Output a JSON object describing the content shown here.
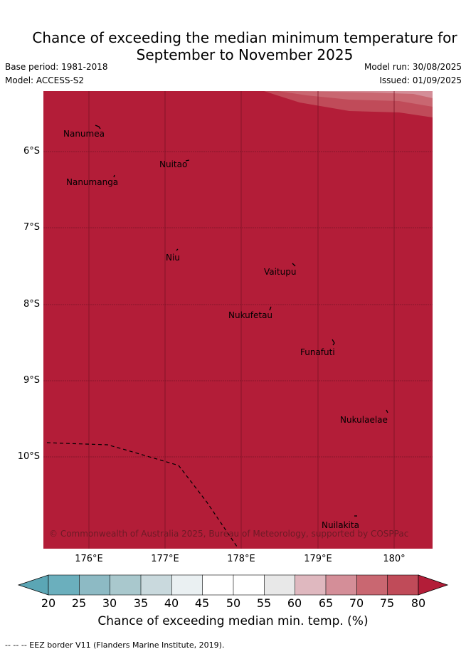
{
  "title": {
    "line1": "Chance of exceeding the median minimum temperature for",
    "line2": "September to November 2025"
  },
  "meta": {
    "base_period": "Base period: 1981-2018",
    "model": "Model: ACCESS-S2",
    "model_run": "Model run: 30/08/2025",
    "issued": "Issued: 01/09/2025"
  },
  "map": {
    "fill_color": "#b31d38",
    "y_ticks": [
      "6°S",
      "7°S",
      "8°S",
      "9°S",
      "10°S"
    ],
    "x_ticks": [
      "176°E",
      "177°E",
      "178°E",
      "179°E",
      "180°"
    ],
    "islands": [
      "Nanumea",
      "Nuitao",
      "Nanumanga",
      "Niu",
      "Vaitupu",
      "Nukufetau",
      "Funafuti",
      "Nukulaelae",
      "Nuilakita"
    ],
    "copyright": "© Commonwealth of Australia 2025, Bureau of Meteorology, supported by COSPPac"
  },
  "colorbar": {
    "ticks": [
      "20",
      "25",
      "30",
      "35",
      "40",
      "45",
      "50",
      "55",
      "60",
      "65",
      "70",
      "75",
      "80"
    ],
    "colors": [
      "#5ba6b5",
      "#6bafbd",
      "#8dbac4",
      "#a9c8cd",
      "#c9d9dd",
      "#eaf0f2",
      "#ffffff",
      "#ffffff",
      "#e8e8e8",
      "#dfb8bf",
      "#d48e98",
      "#c96771",
      "#c04b59",
      "#b31d38"
    ],
    "label": "Chance of exceeding median min. temp. (%)"
  },
  "footnote": "--  --  -- EEZ border V11 (Flanders Marine Institute, 2019)."
}
